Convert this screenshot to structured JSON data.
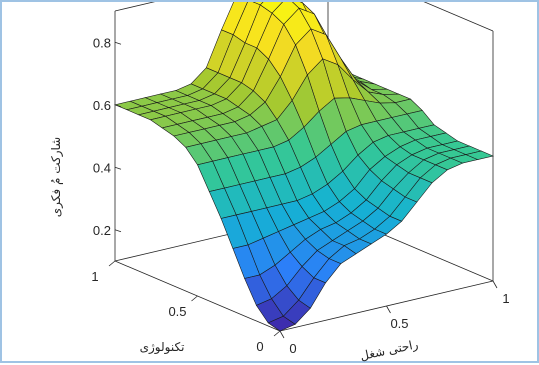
{
  "chart_data": {
    "type": "surface",
    "title": "",
    "xlabel": "راحتی شغل",
    "ylabel": "تکنولوژی",
    "zlabel": "شارکت مُ فکری",
    "xlim": [
      0,
      1
    ],
    "ylim": [
      0,
      1
    ],
    "zlim": [
      0.1,
      0.9
    ],
    "x_ticks": [
      "0",
      "0.5",
      "1"
    ],
    "y_ticks": [
      "0",
      "0.5",
      "1"
    ],
    "z_ticks": [
      "0.2",
      "0.4",
      "0.6",
      "0.8"
    ],
    "grid": false,
    "colormap": "parula",
    "colormap_colors": [
      "#3e26a8",
      "#2c7ef8",
      "#15b2d3",
      "#36c894",
      "#a9c92d",
      "#f6dc22",
      "#f9fb0e"
    ],
    "x": [
      0,
      0.0714,
      0.1429,
      0.2143,
      0.2857,
      0.3571,
      0.4286,
      0.5,
      0.5714,
      0.6429,
      0.7143,
      0.7857,
      0.8571,
      0.9286,
      1
    ],
    "y": [
      0,
      0.0714,
      0.1429,
      0.2143,
      0.2857,
      0.3571,
      0.4286,
      0.5,
      0.5714,
      0.6429,
      0.7143,
      0.7857,
      0.8571,
      0.9286,
      1
    ],
    "z": [
      [
        0.1,
        0.11,
        0.15,
        0.22,
        0.27,
        0.29,
        0.31,
        0.33,
        0.36,
        0.41,
        0.46,
        0.49,
        0.5,
        0.5,
        0.5
      ],
      [
        0.11,
        0.12,
        0.16,
        0.22,
        0.27,
        0.3,
        0.31,
        0.33,
        0.36,
        0.41,
        0.46,
        0.49,
        0.5,
        0.5,
        0.5
      ],
      [
        0.15,
        0.16,
        0.19,
        0.24,
        0.28,
        0.3,
        0.32,
        0.34,
        0.37,
        0.42,
        0.46,
        0.49,
        0.5,
        0.5,
        0.5
      ],
      [
        0.22,
        0.22,
        0.24,
        0.27,
        0.3,
        0.32,
        0.33,
        0.35,
        0.38,
        0.43,
        0.47,
        0.49,
        0.5,
        0.5,
        0.5
      ],
      [
        0.3,
        0.3,
        0.31,
        0.32,
        0.33,
        0.34,
        0.35,
        0.37,
        0.4,
        0.45,
        0.48,
        0.5,
        0.51,
        0.51,
        0.51
      ],
      [
        0.38,
        0.38,
        0.38,
        0.38,
        0.38,
        0.38,
        0.39,
        0.41,
        0.44,
        0.48,
        0.51,
        0.52,
        0.52,
        0.52,
        0.52
      ],
      [
        0.45,
        0.45,
        0.45,
        0.45,
        0.45,
        0.45,
        0.46,
        0.48,
        0.51,
        0.54,
        0.55,
        0.55,
        0.55,
        0.55,
        0.55
      ],
      [
        0.52,
        0.52,
        0.52,
        0.52,
        0.52,
        0.52,
        0.53,
        0.56,
        0.6,
        0.63,
        0.62,
        0.6,
        0.58,
        0.57,
        0.57
      ],
      [
        0.56,
        0.56,
        0.56,
        0.56,
        0.56,
        0.57,
        0.58,
        0.63,
        0.7,
        0.74,
        0.71,
        0.65,
        0.6,
        0.58,
        0.57
      ],
      [
        0.58,
        0.58,
        0.58,
        0.58,
        0.58,
        0.59,
        0.62,
        0.69,
        0.78,
        0.82,
        0.79,
        0.7,
        0.62,
        0.58,
        0.57
      ],
      [
        0.59,
        0.59,
        0.59,
        0.59,
        0.59,
        0.6,
        0.64,
        0.73,
        0.83,
        0.87,
        0.84,
        0.73,
        0.63,
        0.59,
        0.57
      ],
      [
        0.6,
        0.6,
        0.6,
        0.6,
        0.6,
        0.61,
        0.65,
        0.75,
        0.85,
        0.89,
        0.86,
        0.75,
        0.64,
        0.59,
        0.57
      ],
      [
        0.6,
        0.6,
        0.6,
        0.6,
        0.6,
        0.61,
        0.65,
        0.75,
        0.86,
        0.9,
        0.87,
        0.75,
        0.64,
        0.59,
        0.57
      ],
      [
        0.6,
        0.6,
        0.6,
        0.6,
        0.6,
        0.61,
        0.65,
        0.76,
        0.86,
        0.9,
        0.87,
        0.76,
        0.64,
        0.59,
        0.57
      ],
      [
        0.6,
        0.6,
        0.6,
        0.6,
        0.6,
        0.61,
        0.65,
        0.76,
        0.86,
        0.9,
        0.87,
        0.76,
        0.64,
        0.59,
        0.57
      ]
    ]
  }
}
